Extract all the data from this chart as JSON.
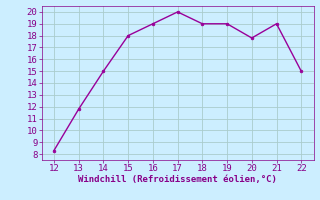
{
  "x": [
    12,
    13,
    14,
    15,
    16,
    17,
    18,
    19,
    20,
    21,
    22
  ],
  "y": [
    8.3,
    11.8,
    15.0,
    18.0,
    19.0,
    20.0,
    19.0,
    19.0,
    17.8,
    19.0,
    15.0
  ],
  "line_color": "#990099",
  "marker_color": "#990099",
  "bg_color": "#cceeff",
  "grid_color": "#aacccc",
  "xlabel": "Windchill (Refroidissement éolien,°C)",
  "xlabel_color": "#880088",
  "xlim": [
    11.5,
    22.5
  ],
  "ylim": [
    7.5,
    20.5
  ],
  "xticks": [
    12,
    13,
    14,
    15,
    16,
    17,
    18,
    19,
    20,
    21,
    22
  ],
  "yticks": [
    8,
    9,
    10,
    11,
    12,
    13,
    14,
    15,
    16,
    17,
    18,
    19,
    20
  ],
  "tick_color": "#880088",
  "font_size": 6.5
}
